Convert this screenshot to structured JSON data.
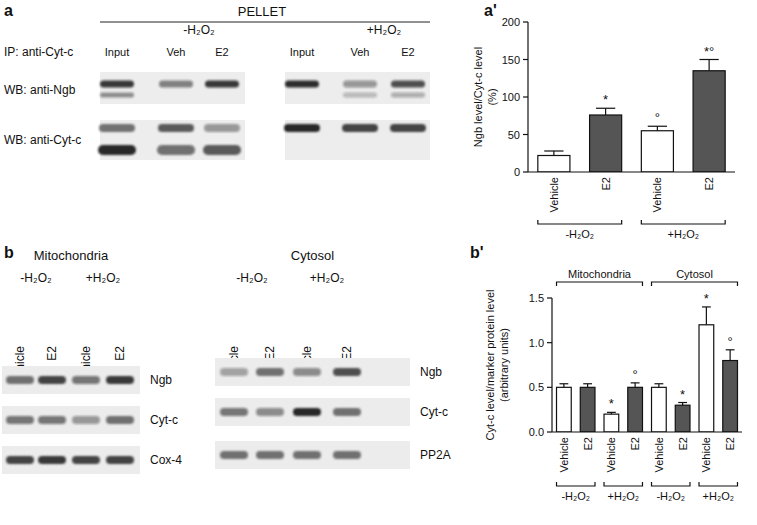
{
  "figure_panels": {
    "a": {
      "label": "a",
      "header": "PELLET",
      "ip_label": "IP: anti-Cyt-c",
      "blots": [
        {
          "condition": "-H₂O₂",
          "lanes": [
            "Input",
            "Veh",
            "E2"
          ]
        },
        {
          "condition": "+H₂O₂",
          "lanes": [
            "Input",
            "Veh",
            "E2"
          ]
        }
      ],
      "rows": [
        "WB: anti-Ngb",
        "WB: anti-Cyt-c"
      ]
    },
    "b": {
      "label": "b",
      "blots": [
        {
          "compartment": "Mitochondria",
          "conditions": [
            "-H₂O₂",
            "+H₂O₂"
          ],
          "lanes": [
            "Vehicle",
            "E2",
            "Vehicle",
            "E2"
          ],
          "rows": [
            "Ngb",
            "Cyt-c",
            "Cox-4"
          ]
        },
        {
          "compartment": "Cytosol",
          "conditions": [
            "-H₂O₂",
            "+H₂O₂"
          ],
          "lanes": [
            "Vehicle",
            "E2",
            "Vehicle",
            "E2"
          ],
          "rows": [
            "Ngb",
            "Cyt-c",
            "PP2A"
          ]
        }
      ]
    }
  },
  "chart_data": [
    {
      "type": "bar",
      "title": "a'",
      "y_label": [
        "Ngb level/Cyt-c level",
        "(%)"
      ],
      "categories": [
        "Vehicle",
        "E2",
        "Vehicle",
        "E2"
      ],
      "values": [
        22,
        76,
        55,
        135
      ],
      "errors": [
        6,
        9,
        6,
        15
      ],
      "annotations": [
        null,
        "*",
        "°",
        "*°"
      ],
      "colors": [
        "#ffffff",
        "#555555",
        "#ffffff",
        "#555555"
      ],
      "group_labels": [
        "-H₂O₂",
        "+H₂O₂"
      ],
      "ylim": [
        0,
        200
      ],
      "yticks": [
        0,
        50,
        100,
        150,
        200
      ]
    },
    {
      "type": "bar",
      "title": "b'",
      "y_label": [
        "Cyt-c level/marker protein level",
        "(arbitrary units)"
      ],
      "section_labels": [
        "Mitochondria",
        "Cytosol"
      ],
      "categories": [
        "Vehicle",
        "E2",
        "Vehicle",
        "E2",
        "Vehicle",
        "E2",
        "Vehicle",
        "E2"
      ],
      "values": [
        0.5,
        0.5,
        0.2,
        0.5,
        0.5,
        0.3,
        1.2,
        0.8
      ],
      "errors": [
        0.04,
        0.04,
        0.02,
        0.05,
        0.04,
        0.03,
        0.2,
        0.12
      ],
      "annotations": [
        null,
        null,
        "*",
        "°",
        null,
        "*",
        "*",
        "°"
      ],
      "colors": [
        "#ffffff",
        "#555555",
        "#ffffff",
        "#555555",
        "#ffffff",
        "#555555",
        "#ffffff",
        "#555555"
      ],
      "group_labels": [
        "-H₂O₂",
        "+H₂O₂",
        "-H₂O₂",
        "+H₂O₂"
      ],
      "ylim": [
        0,
        1.5
      ],
      "yticks": [
        {
          "value": 0,
          "label": "0.0"
        },
        {
          "value": 0.5,
          "label": "0.5"
        },
        {
          "value": 1,
          "label": "1.0"
        },
        {
          "value": 1.5,
          "label": "1.5"
        }
      ]
    }
  ]
}
